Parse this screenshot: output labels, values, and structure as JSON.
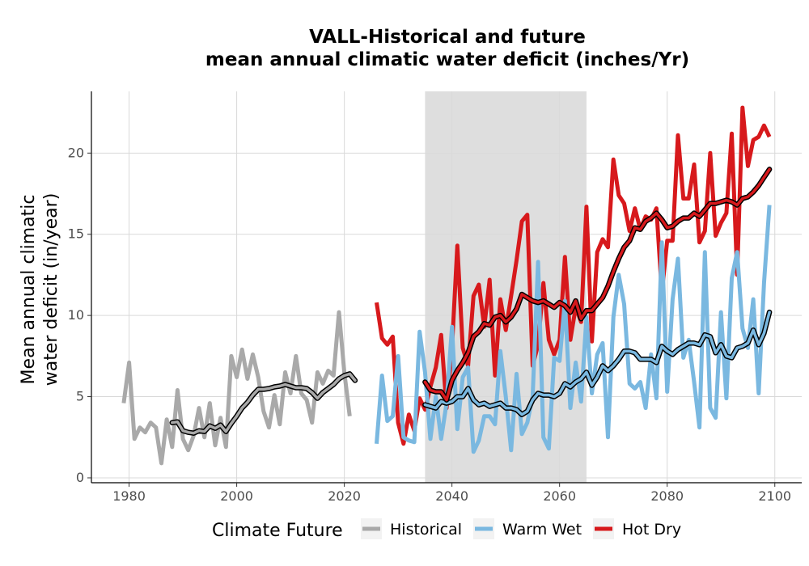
{
  "chart_data": {
    "type": "line",
    "title": [
      "VALL-Historical and future",
      "mean annual climatic water deficit (inches/Yr)"
    ],
    "ylabel": [
      "Mean annual climatic",
      "water deficit (in/year)"
    ],
    "xlabel": "",
    "xlim": [
      1973,
      2105
    ],
    "ylim": [
      -0.3,
      23.8
    ],
    "xticks": [
      1980,
      2000,
      2020,
      2040,
      2060,
      2080,
      2100
    ],
    "yticks": [
      0,
      5,
      10,
      15,
      20
    ],
    "grid": true,
    "shaded_period": [
      2035,
      2065
    ],
    "legend": {
      "title": "Climate Future",
      "position": "bottom"
    },
    "series": [
      {
        "name": "Historical",
        "color": "#a9a9a9",
        "x": [
          1979,
          1980,
          1981,
          1982,
          1983,
          1984,
          1985,
          1986,
          1987,
          1988,
          1989,
          1990,
          1991,
          1992,
          1993,
          1994,
          1995,
          1996,
          1997,
          1998,
          1999,
          2000,
          2001,
          2002,
          2003,
          2004,
          2005,
          2006,
          2007,
          2008,
          2009,
          2010,
          2011,
          2012,
          2013,
          2014,
          2015,
          2016,
          2017,
          2018,
          2019,
          2020,
          2021,
          2022
        ],
        "values": [
          4.6,
          7.1,
          2.4,
          3.1,
          2.8,
          3.4,
          3.1,
          0.9,
          3.6,
          1.9,
          5.4,
          2.4,
          1.7,
          2.6,
          4.3,
          2.5,
          4.6,
          2.0,
          3.7,
          1.9,
          7.5,
          6.2,
          7.9,
          6.1,
          7.6,
          6.2,
          4.1,
          3.1,
          5.1,
          3.3,
          6.5,
          5.2,
          7.5,
          5.2,
          4.8,
          3.4,
          6.5,
          5.8,
          6.6,
          6.3,
          10.2,
          6.5,
          3.8,
          null
        ]
      },
      {
        "name": "Historical smoothed",
        "color": "#a9a9a9",
        "x": [
          1988,
          1989,
          1990,
          1991,
          1992,
          1993,
          1994,
          1995,
          1996,
          1997,
          1998,
          1999,
          2000,
          2001,
          2002,
          2003,
          2004,
          2005,
          2006,
          2007,
          2008,
          2009,
          2010,
          2011,
          2012,
          2013,
          2014,
          2015,
          2016,
          2017,
          2018,
          2019,
          2020,
          2021,
          2022
        ],
        "values": [
          3.4,
          3.45,
          2.9,
          2.8,
          2.75,
          2.9,
          2.85,
          3.2,
          3.05,
          3.25,
          2.85,
          3.35,
          3.8,
          4.3,
          4.65,
          5.1,
          5.45,
          5.45,
          5.5,
          5.6,
          5.65,
          5.75,
          5.65,
          5.55,
          5.55,
          5.5,
          5.25,
          4.9,
          5.25,
          5.5,
          5.75,
          6.1,
          6.3,
          6.4,
          6.0
        ]
      },
      {
        "name": "Warm Wet",
        "color": "#7ab8e0",
        "x": [
          2026,
          2027,
          2028,
          2029,
          2030,
          2031,
          2032,
          2033,
          2034,
          2035,
          2036,
          2037,
          2038,
          2039,
          2040,
          2041,
          2042,
          2043,
          2044,
          2045,
          2046,
          2047,
          2048,
          2049,
          2050,
          2051,
          2052,
          2053,
          2054,
          2055,
          2056,
          2057,
          2058,
          2059,
          2060,
          2061,
          2062,
          2063,
          2064,
          2065,
          2066,
          2067,
          2068,
          2069,
          2070,
          2071,
          2072,
          2073,
          2074,
          2075,
          2076,
          2077,
          2078,
          2079,
          2080,
          2081,
          2082,
          2083,
          2084,
          2085,
          2086,
          2087,
          2088,
          2089,
          2090,
          2091,
          2092,
          2093,
          2094,
          2095,
          2096,
          2097,
          2098,
          2099
        ],
        "values": [
          2.1,
          6.3,
          3.5,
          3.8,
          7.5,
          2.5,
          2.3,
          2.2,
          9.0,
          6.5,
          2.4,
          5.0,
          2.4,
          4.6,
          9.3,
          3.0,
          6.2,
          6.8,
          1.6,
          2.3,
          3.8,
          3.8,
          3.3,
          7.8,
          5.0,
          1.7,
          6.4,
          2.7,
          3.4,
          5.0,
          13.3,
          2.5,
          1.8,
          7.4,
          7.2,
          10.9,
          4.3,
          7.1,
          4.7,
          9.9,
          5.2,
          7.6,
          8.3,
          2.5,
          9.9,
          12.5,
          10.7,
          5.8,
          5.5,
          5.9,
          4.3,
          7.6,
          4.9,
          14.5,
          5.3,
          11.0,
          13.5,
          7.4,
          8.5,
          5.9,
          3.1,
          13.9,
          4.3,
          3.7,
          10.2,
          4.9,
          12.3,
          13.9,
          9.2,
          8.0,
          11.0,
          5.2,
          12.0,
          16.8
        ]
      },
      {
        "name": "Warm Wet smoothed",
        "color": "#7ab8e0",
        "x": [
          2035,
          2036,
          2037,
          2038,
          2039,
          2040,
          2041,
          2042,
          2043,
          2044,
          2045,
          2046,
          2047,
          2048,
          2049,
          2050,
          2051,
          2052,
          2053,
          2054,
          2055,
          2056,
          2057,
          2058,
          2059,
          2060,
          2061,
          2062,
          2063,
          2064,
          2065,
          2066,
          2067,
          2068,
          2069,
          2070,
          2071,
          2072,
          2073,
          2074,
          2075,
          2076,
          2077,
          2078,
          2079,
          2080,
          2081,
          2082,
          2083,
          2084,
          2085,
          2086,
          2087,
          2088,
          2089,
          2090,
          2091,
          2092,
          2093,
          2094,
          2095,
          2096,
          2097,
          2098,
          2099
        ],
        "values": [
          4.5,
          4.4,
          4.3,
          4.7,
          4.6,
          4.7,
          5.0,
          5.0,
          5.5,
          4.8,
          4.5,
          4.6,
          4.4,
          4.5,
          4.6,
          4.3,
          4.3,
          4.2,
          3.9,
          4.1,
          4.8,
          5.2,
          5.1,
          5.1,
          5.0,
          5.2,
          5.8,
          5.6,
          5.9,
          6.1,
          6.5,
          5.7,
          6.2,
          6.9,
          6.6,
          6.9,
          7.3,
          7.8,
          7.8,
          7.7,
          7.3,
          7.3,
          7.3,
          7.1,
          8.1,
          7.8,
          7.6,
          7.9,
          8.1,
          8.3,
          8.3,
          8.2,
          8.8,
          8.7,
          7.7,
          8.2,
          7.5,
          7.4,
          8.0,
          8.1,
          8.3,
          9.1,
          8.2,
          8.9,
          10.2
        ]
      },
      {
        "name": "Hot Dry",
        "color": "#d7191c",
        "x": [
          2026,
          2027,
          2028,
          2029,
          2030,
          2031,
          2032,
          2033,
          2034,
          2035,
          2036,
          2037,
          2038,
          2039,
          2040,
          2041,
          2042,
          2043,
          2044,
          2045,
          2046,
          2047,
          2048,
          2049,
          2050,
          2051,
          2052,
          2053,
          2054,
          2055,
          2056,
          2057,
          2058,
          2059,
          2060,
          2061,
          2062,
          2063,
          2064,
          2065,
          2066,
          2067,
          2068,
          2069,
          2070,
          2071,
          2072,
          2073,
          2074,
          2075,
          2076,
          2077,
          2078,
          2079,
          2080,
          2081,
          2082,
          2083,
          2084,
          2085,
          2086,
          2087,
          2088,
          2089,
          2090,
          2091,
          2092,
          2093,
          2094,
          2095,
          2096,
          2097,
          2098,
          2099
        ],
        "values": [
          10.8,
          8.6,
          8.2,
          8.7,
          3.4,
          2.1,
          3.9,
          2.9,
          4.9,
          4.2,
          5.6,
          6.8,
          8.8,
          4.3,
          8.0,
          14.3,
          8.0,
          6.9,
          11.2,
          11.9,
          9.3,
          12.2,
          6.3,
          11.0,
          9.1,
          11.2,
          13.4,
          15.8,
          16.2,
          6.9,
          8.2,
          12.0,
          8.5,
          7.6,
          8.5,
          13.6,
          8.5,
          10.5,
          9.6,
          16.7,
          8.4,
          13.9,
          14.7,
          14.2,
          19.6,
          17.4,
          16.9,
          15.2,
          16.6,
          15.3,
          16.1,
          15.9,
          16.6,
          11.4,
          14.6,
          14.6,
          21.1,
          17.2,
          17.2,
          19.3,
          14.5,
          15.2,
          20.0,
          14.9,
          15.7,
          16.3,
          21.2,
          12.5,
          22.8,
          19.2,
          20.8,
          21.0,
          21.7,
          21.0
        ]
      },
      {
        "name": "Hot Dry smoothed",
        "color": "#d7191c",
        "x": [
          2035,
          2036,
          2037,
          2038,
          2039,
          2040,
          2041,
          2042,
          2043,
          2044,
          2045,
          2046,
          2047,
          2048,
          2049,
          2050,
          2051,
          2052,
          2053,
          2054,
          2055,
          2056,
          2057,
          2058,
          2059,
          2060,
          2061,
          2062,
          2063,
          2064,
          2065,
          2066,
          2067,
          2068,
          2069,
          2070,
          2071,
          2072,
          2073,
          2074,
          2075,
          2076,
          2077,
          2078,
          2079,
          2080,
          2081,
          2082,
          2083,
          2084,
          2085,
          2086,
          2087,
          2088,
          2089,
          2090,
          2091,
          2092,
          2093,
          2094,
          2095,
          2096,
          2097,
          2098,
          2099
        ],
        "values": [
          5.9,
          5.4,
          5.3,
          5.3,
          4.8,
          6.0,
          6.6,
          7.1,
          7.7,
          8.7,
          9.0,
          9.5,
          9.4,
          9.9,
          10.0,
          9.6,
          9.9,
          10.4,
          11.3,
          11.1,
          10.9,
          10.8,
          10.9,
          10.7,
          10.5,
          10.8,
          10.6,
          10.2,
          10.9,
          9.8,
          10.3,
          10.3,
          10.7,
          11.1,
          11.8,
          12.7,
          13.5,
          14.2,
          14.6,
          15.4,
          15.3,
          15.8,
          16.0,
          16.3,
          15.9,
          15.4,
          15.5,
          15.8,
          16.0,
          16.0,
          16.3,
          16.1,
          16.5,
          16.9,
          16.9,
          17.0,
          17.1,
          17.0,
          16.8,
          17.2,
          17.3,
          17.6,
          18.0,
          18.5,
          19.0
        ]
      }
    ]
  }
}
